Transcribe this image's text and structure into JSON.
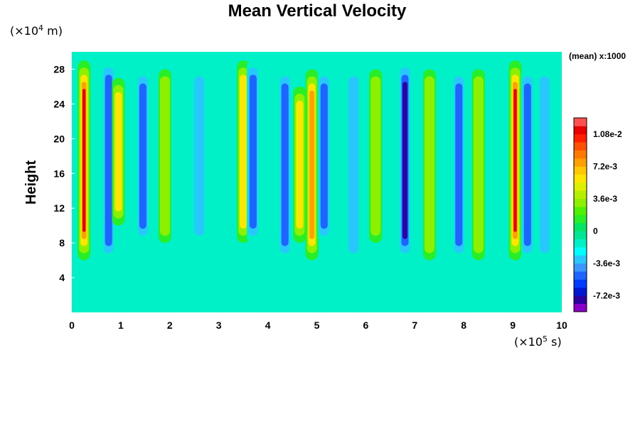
{
  "chart_data": {
    "type": "heatmap",
    "title": "Mean Vertical Velocity",
    "xlabel": "",
    "ylabel": "Height",
    "x_unit_text": "(×10",
    "x_unit_exp": "5",
    "x_unit_tail": " s)",
    "y_unit_text": "(×10",
    "y_unit_exp": "4",
    "y_unit_tail": " m)",
    "xlim": [
      0,
      10
    ],
    "ylim": [
      0,
      30
    ],
    "x_ticks": [
      "0",
      "1",
      "2",
      "3",
      "4",
      "5",
      "6",
      "7",
      "8",
      "9",
      "10"
    ],
    "y_ticks": [
      "4",
      "8",
      "12",
      "16",
      "20",
      "24",
      "28"
    ],
    "colorbar": {
      "label": "(mean) x:1000",
      "tick_labels": [
        "1.08e-2",
        "7.2e-3",
        "3.6e-3",
        "0",
        "-3.6e-3",
        "-7.2e-3"
      ],
      "levels": [
        -0.009,
        -0.0081,
        -0.0072,
        -0.0063,
        -0.0054,
        -0.0045,
        -0.0036,
        -0.0027,
        -0.0018,
        -0.0009,
        0,
        0.0009,
        0.0018,
        0.0027,
        0.0036,
        0.0045,
        0.0054,
        0.0063,
        0.0072,
        0.0081,
        0.009,
        0.0099,
        0.0108,
        0.0117,
        0.0126
      ],
      "colors": [
        "#8a00c8",
        "#2d00a0",
        "#0018d2",
        "#003cff",
        "#1e64ff",
        "#3c96ff",
        "#28c8ff",
        "#00ffff",
        "#00f0c8",
        "#00e696",
        "#00e664",
        "#28ee28",
        "#50f000",
        "#8cf000",
        "#b4f000",
        "#dcf000",
        "#ffe600",
        "#ffc800",
        "#ffa000",
        "#ff7800",
        "#ff5000",
        "#ff1e00",
        "#e60000",
        "#ff5050"
      ]
    },
    "features": [
      {
        "x": 0.25,
        "ymin": 6,
        "ymax": 29,
        "value": 0.012
      },
      {
        "x": 0.75,
        "ymin": 6,
        "ymax": 29,
        "value": -0.006
      },
      {
        "x": 0.95,
        "ymin": 10,
        "ymax": 27,
        "value": 0.006
      },
      {
        "x": 1.45,
        "ymin": 8,
        "ymax": 28,
        "value": -0.005
      },
      {
        "x": 1.9,
        "ymin": 8,
        "ymax": 28,
        "value": 0.004
      },
      {
        "x": 2.6,
        "ymin": 8,
        "ymax": 28,
        "value": -0.003
      },
      {
        "x": 3.5,
        "ymin": 8,
        "ymax": 29,
        "value": 0.006
      },
      {
        "x": 3.7,
        "ymin": 8,
        "ymax": 29,
        "value": -0.006
      },
      {
        "x": 4.35,
        "ymin": 6,
        "ymax": 28,
        "value": -0.006
      },
      {
        "x": 4.65,
        "ymin": 8,
        "ymax": 26,
        "value": 0.005
      },
      {
        "x": 4.9,
        "ymin": 6,
        "ymax": 28,
        "value": 0.008
      },
      {
        "x": 5.15,
        "ymin": 8,
        "ymax": 28,
        "value": -0.005
      },
      {
        "x": 5.75,
        "ymin": 6,
        "ymax": 28,
        "value": -0.004
      },
      {
        "x": 6.2,
        "ymin": 8,
        "ymax": 28,
        "value": 0.003
      },
      {
        "x": 6.8,
        "ymin": 6,
        "ymax": 29,
        "value": -0.008
      },
      {
        "x": 7.3,
        "ymin": 6,
        "ymax": 28,
        "value": 0.004
      },
      {
        "x": 7.9,
        "ymin": 6,
        "ymax": 28,
        "value": -0.006
      },
      {
        "x": 8.3,
        "ymin": 6,
        "ymax": 28,
        "value": 0.003
      },
      {
        "x": 9.05,
        "ymin": 6,
        "ymax": 29,
        "value": 0.013
      },
      {
        "x": 9.3,
        "ymin": 6,
        "ymax": 28,
        "value": -0.005
      },
      {
        "x": 9.65,
        "ymin": 6,
        "ymax": 28,
        "value": -0.004
      }
    ]
  }
}
